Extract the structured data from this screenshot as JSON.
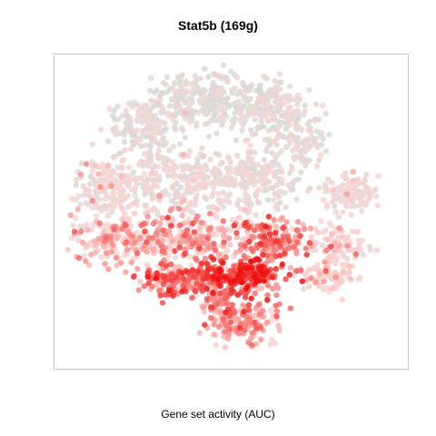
{
  "chart_data": {
    "type": "scatter",
    "title": "Stat5b (169g)",
    "xlabel": "Gene set activity (AUC)",
    "ylabel": "",
    "grid": false,
    "legend": "none",
    "colors": {
      "low": "#d9d9d9",
      "mid": "#fcd4d0",
      "high": "#ee1111",
      "frame": "#c8c8c8"
    }
  }
}
